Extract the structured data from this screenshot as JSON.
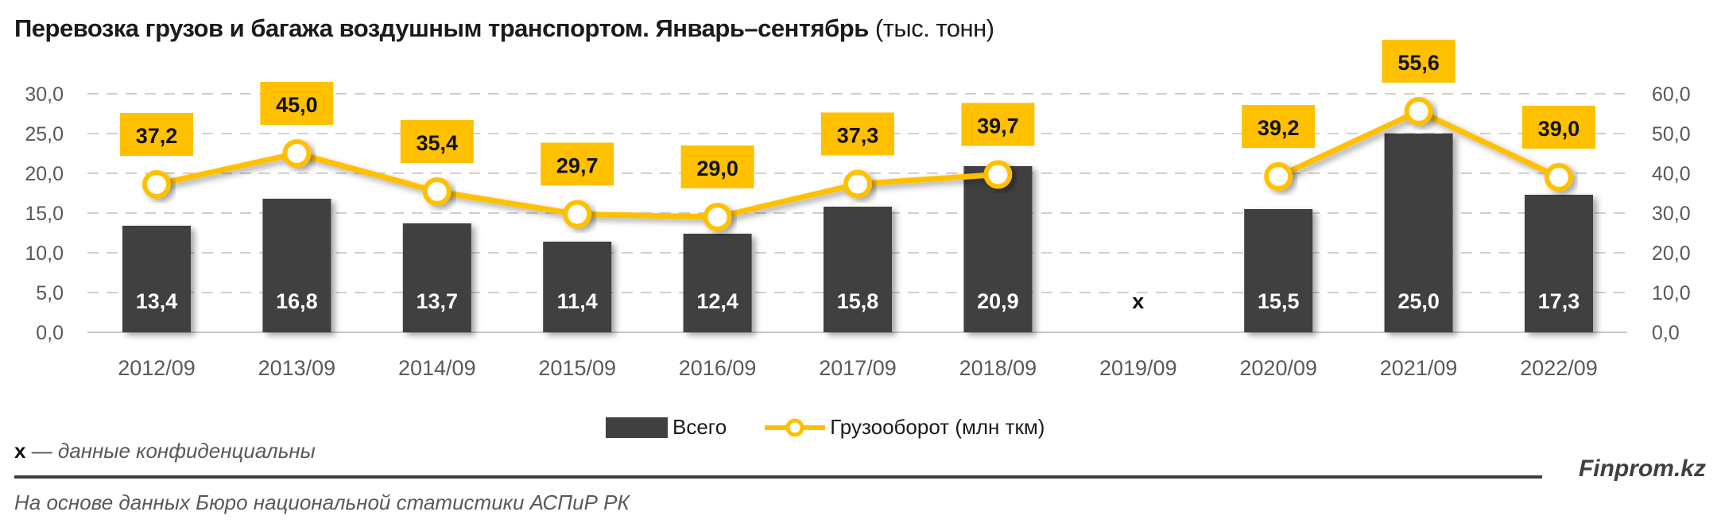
{
  "title": {
    "bold": "Перевозка грузов и багажа воздушным транспортом. Январь–сентябрь",
    "unit": "(тыс. тонн)"
  },
  "legend": {
    "bar": "Всего",
    "line": "Грузооборот (млн ткм)"
  },
  "note": {
    "symbol": "x",
    "text": " — данные конфиденциальны"
  },
  "brand": "Finprom.kz",
  "source": "На основе данных Бюро национальной статистики АСПиР РК",
  "colors": {
    "bar": "#404040",
    "line": "#FFC000",
    "grid": "#D0D0D0",
    "axis_text": "#595959"
  },
  "chart_data": {
    "type": "bar",
    "title": "Перевозка грузов и багажа воздушным транспортом. Январь–сентябрь (тыс. тонн)",
    "categories": [
      "2012/09",
      "2013/09",
      "2014/09",
      "2015/09",
      "2016/09",
      "2017/09",
      "2018/09",
      "2019/09",
      "2020/09",
      "2021/09",
      "2022/09"
    ],
    "series": [
      {
        "name": "Всего",
        "type": "bar",
        "axis": "left",
        "values": [
          13.4,
          16.8,
          13.7,
          11.4,
          12.4,
          15.8,
          20.9,
          null,
          15.5,
          25.0,
          17.3
        ],
        "labels": [
          "13,4",
          "16,8",
          "13,7",
          "11,4",
          "12,4",
          "15,8",
          "20,9",
          "x",
          "15,5",
          "25,0",
          "17,3"
        ]
      },
      {
        "name": "Грузооборот (млн ткм)",
        "type": "line",
        "axis": "right",
        "values": [
          37.2,
          45.0,
          35.4,
          29.7,
          29.0,
          37.3,
          39.7,
          null,
          39.2,
          55.6,
          39.0
        ],
        "labels": [
          "37,2",
          "45,0",
          "35,4",
          "29,7",
          "29,0",
          "37,3",
          "39,7",
          "",
          "39,2",
          "55,6",
          "39,0"
        ]
      }
    ],
    "y_left": {
      "min": 0,
      "max": 30,
      "step": 5,
      "ticks": [
        "0,0",
        "5,0",
        "10,0",
        "15,0",
        "20,0",
        "25,0",
        "30,0"
      ]
    },
    "y_right": {
      "min": 0,
      "max": 60,
      "step": 10,
      "ticks": [
        "0,0",
        "10,0",
        "20,0",
        "30,0",
        "40,0",
        "50,0",
        "60,0"
      ]
    },
    "xlabel": "",
    "ylabel": "",
    "grid": true,
    "legend_position": "bottom"
  }
}
